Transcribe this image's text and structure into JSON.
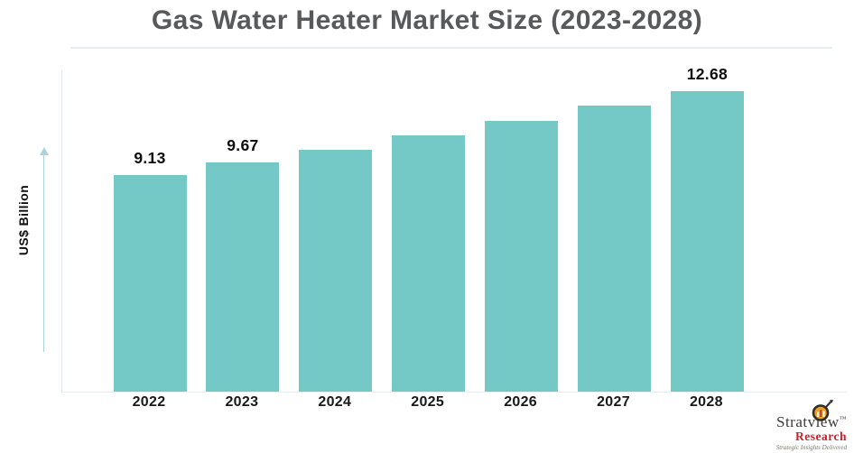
{
  "chart_data": {
    "type": "bar",
    "title": "Gas Water Heater Market Size (2023-2028)",
    "ylabel": "US$ Billion",
    "xlabel": "",
    "categories": [
      "2022",
      "2023",
      "2024",
      "2025",
      "2026",
      "2027",
      "2028"
    ],
    "values": [
      9.13,
      9.67,
      10.2,
      10.8,
      11.4,
      12.05,
      12.68
    ],
    "bar_labels": [
      "9.13",
      "9.67",
      "",
      "",
      "",
      "",
      "12.68"
    ],
    "ylim": [
      0,
      13.5
    ],
    "grid": false,
    "legend": false,
    "bar_color": "#74c8c5",
    "axis_color": "#dfeaee",
    "arrow_color": "#a9d2da",
    "title_color": "#58595b",
    "data_label_color": "#0e0e0e"
  },
  "branding": {
    "brand_name": "Stratview",
    "brand_trademark": "™",
    "brand_sub": "Research",
    "tagline": "Strategic Insights Delivered"
  }
}
